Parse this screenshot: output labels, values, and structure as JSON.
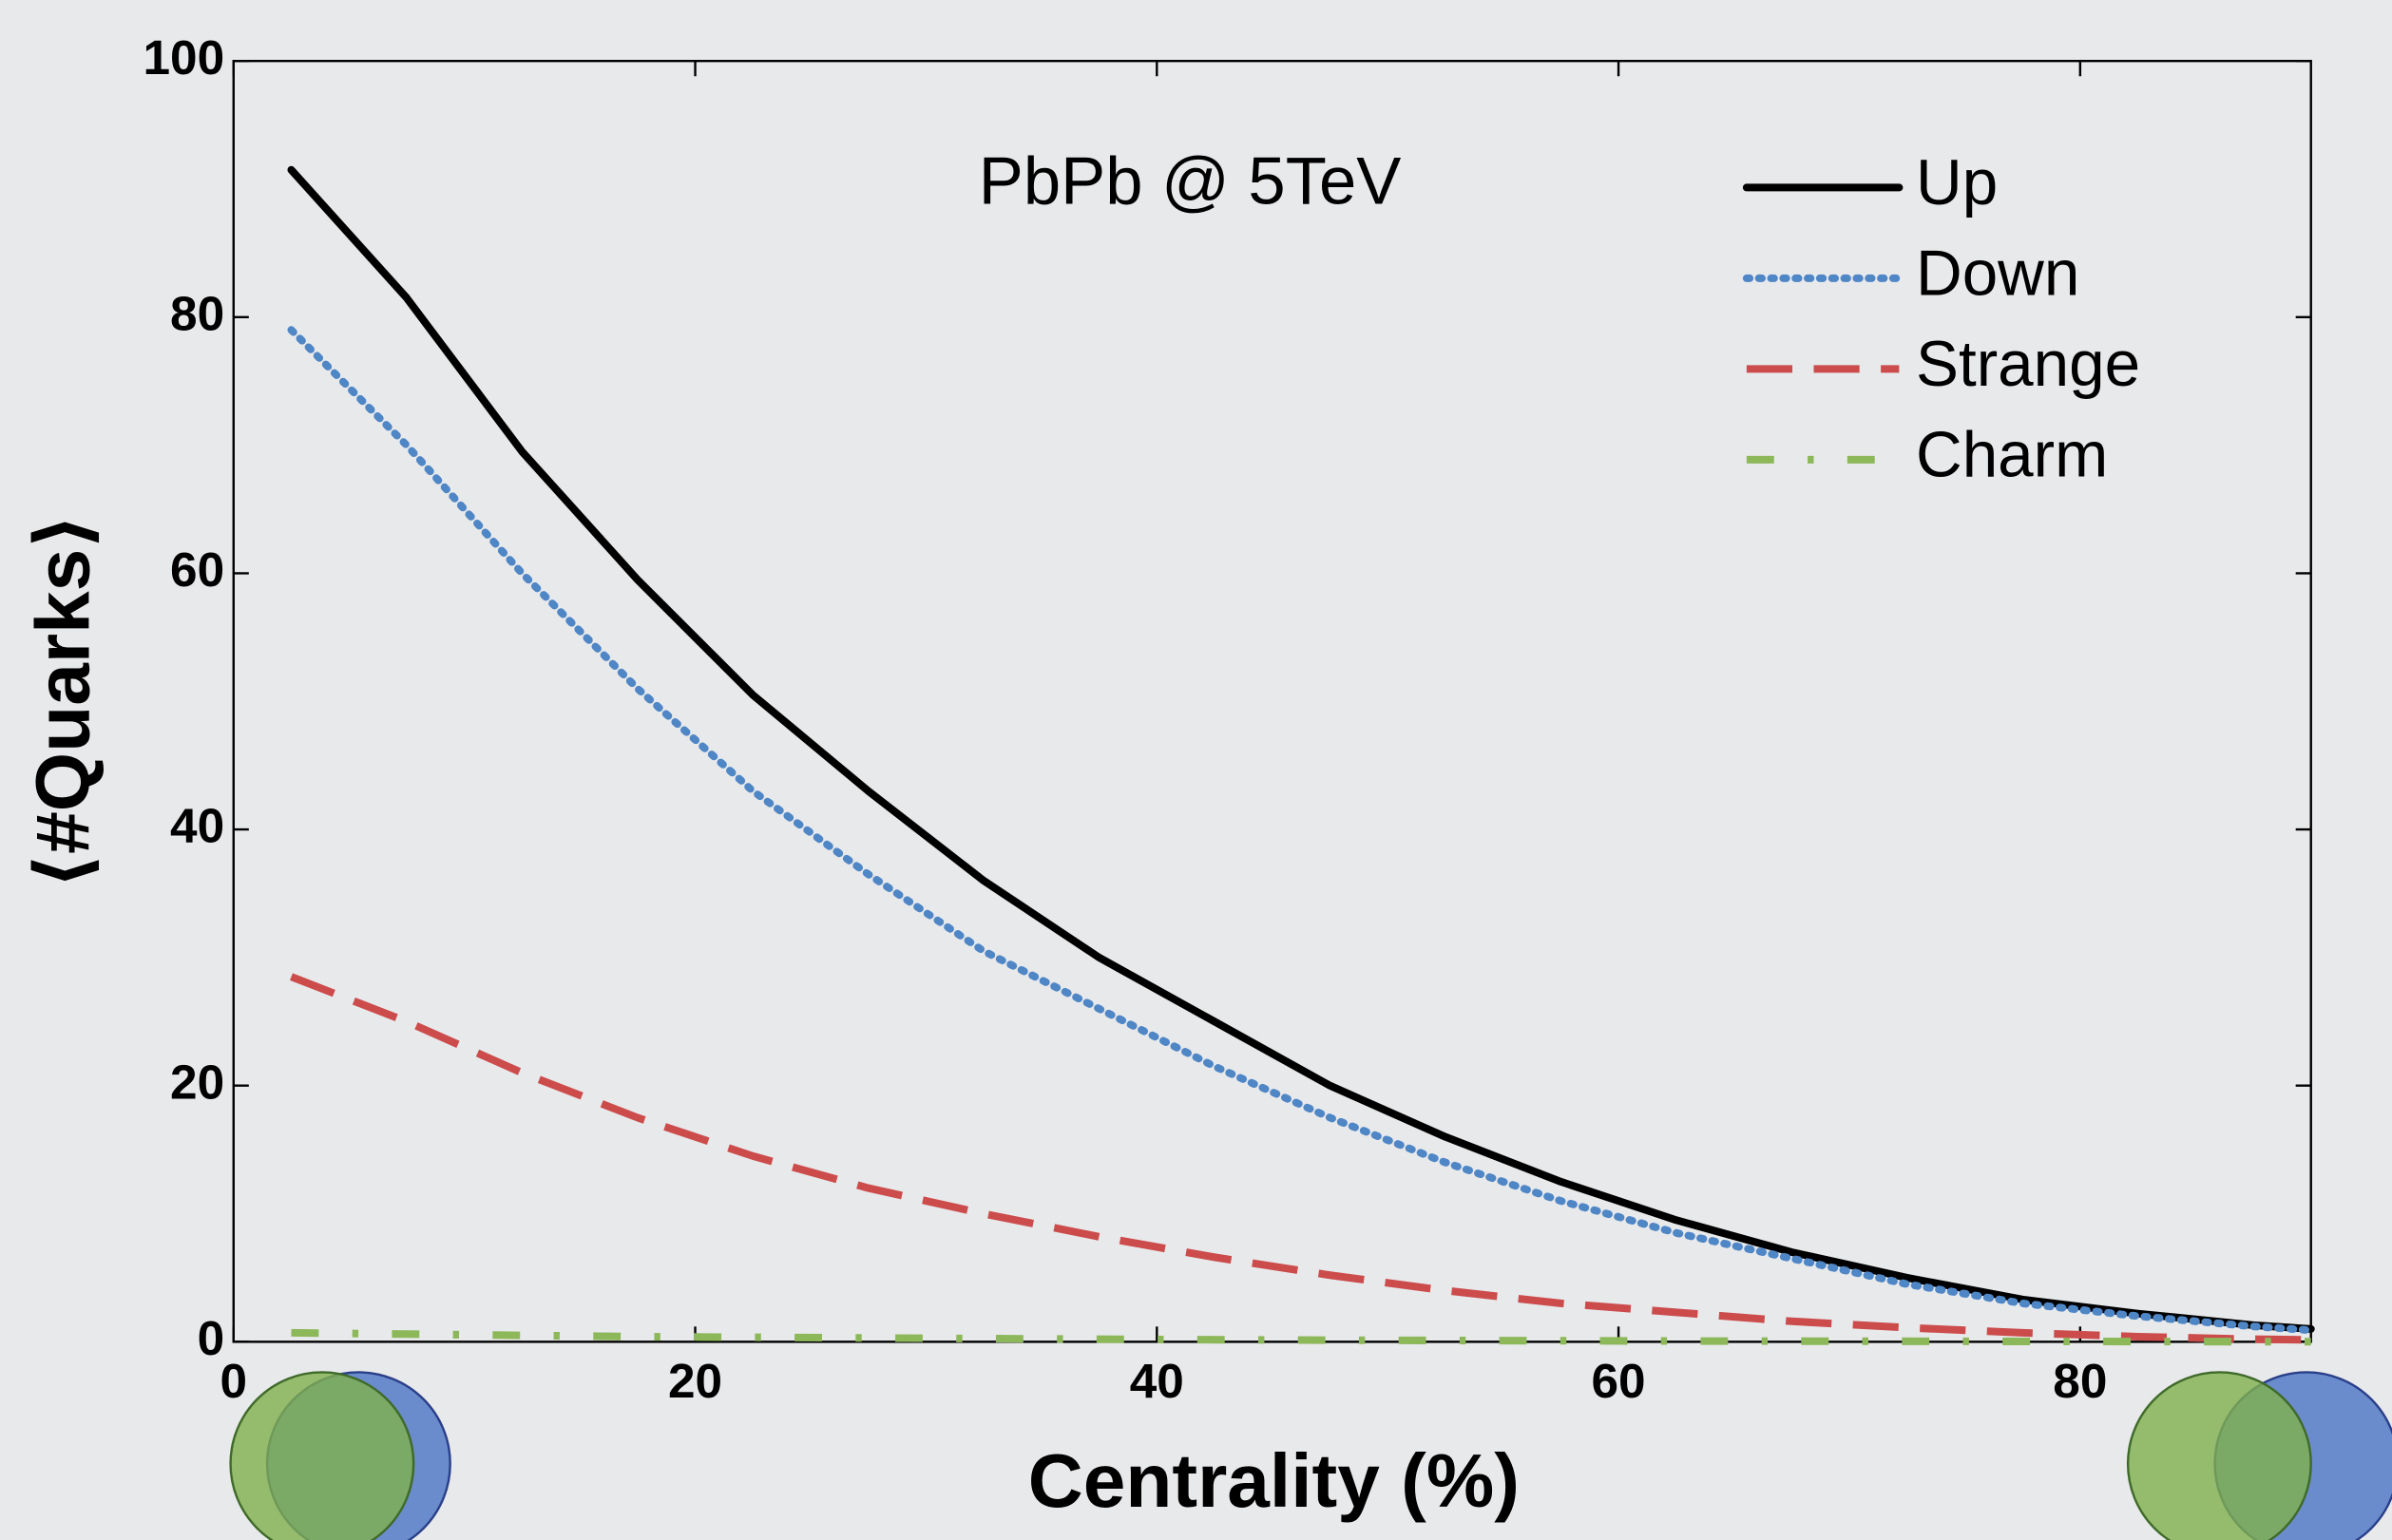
{
  "chart_data": {
    "type": "line",
    "annotation": "PbPb @ 5TeV",
    "x_label": "Centrality (%)",
    "y_label": "⟨#Quarks⟩",
    "x": [
      2.5,
      7.5,
      12.5,
      17.5,
      22.5,
      27.5,
      32.5,
      37.5,
      42.5,
      47.5,
      52.5,
      57.5,
      62.5,
      67.5,
      72.5,
      77.5,
      82.5,
      87.5,
      90
    ],
    "series": [
      {
        "name": "Up",
        "color": "#000000",
        "dash": "solid",
        "values": [
          91.5,
          81.5,
          69.5,
          59.5,
          50.5,
          43,
          36,
          30,
          25,
          20,
          16,
          12.5,
          9.5,
          7,
          5,
          3.3,
          2.2,
          1.3,
          1
        ]
      },
      {
        "name": "Down",
        "color": "#4f86c6",
        "dash": "dotted",
        "values": [
          79,
          70,
          60,
          51,
          43,
          36.5,
          30.5,
          26,
          21.5,
          17.5,
          14,
          11,
          8.5,
          6.5,
          4.5,
          3,
          2,
          1.2,
          0.9
        ]
      },
      {
        "name": "Strange",
        "color": "#cc4c4c",
        "dash": "dashed",
        "values": [
          28.5,
          25,
          21,
          17.5,
          14.5,
          12,
          10,
          8.2,
          6.6,
          5.2,
          4,
          3,
          2.3,
          1.6,
          1.1,
          0.7,
          0.4,
          0.2,
          0.15
        ]
      },
      {
        "name": "Charm",
        "color": "#8db85a",
        "dash": "dashdot",
        "values": [
          0.7,
          0.6,
          0.5,
          0.4,
          0.35,
          0.3,
          0.25,
          0.2,
          0.16,
          0.13,
          0.1,
          0.08,
          0.06,
          0.05,
          0.04,
          0.03,
          0.02,
          0.01,
          0.01
        ]
      }
    ],
    "xlim": [
      0,
      90
    ],
    "xticks": [
      0,
      20,
      40,
      60,
      80
    ],
    "ylim": [
      0,
      100
    ],
    "yticks": [
      0,
      20,
      40,
      60,
      80,
      100
    ],
    "grid": false,
    "legend": "upper right"
  }
}
